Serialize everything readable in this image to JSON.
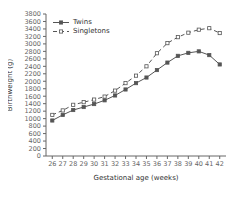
{
  "chart_data": {
    "type": "line",
    "xlabel": "Gestational age (weeks)",
    "ylabel": "Birthweight (g)",
    "x": [
      26,
      27,
      28,
      29,
      30,
      31,
      32,
      33,
      34,
      35,
      36,
      37,
      38,
      39,
      40,
      41,
      42
    ],
    "series": [
      {
        "name": "Twins",
        "color": "#555555",
        "values": [
          950,
          1100,
          1230,
          1310,
          1390,
          1490,
          1620,
          1780,
          1950,
          2100,
          2300,
          2500,
          2680,
          2760,
          2800,
          2700,
          2450
        ],
        "marker": "square",
        "line_style": "solid"
      },
      {
        "name": "Singletons",
        "color": "#555555",
        "values": [
          1100,
          1220,
          1370,
          1440,
          1510,
          1590,
          1750,
          1950,
          2150,
          2400,
          2750,
          3020,
          3180,
          3300,
          3380,
          3420,
          3290
        ],
        "marker": "open_square",
        "line_style": "dashed"
      }
    ],
    "xlim": [
      25.4,
      42.6
    ],
    "xticks": [
      26,
      27,
      28,
      29,
      30,
      31,
      32,
      33,
      34,
      35,
      36,
      37,
      38,
      39,
      40,
      41,
      42
    ],
    "ylim": [
      0,
      3800
    ],
    "yticks": [
      0,
      200,
      400,
      600,
      800,
      1000,
      1200,
      1400,
      1600,
      1800,
      2000,
      2200,
      2400,
      2600,
      2800,
      3000,
      3200,
      3400,
      3600,
      3800
    ],
    "legend": "upper left",
    "grid": false
  }
}
